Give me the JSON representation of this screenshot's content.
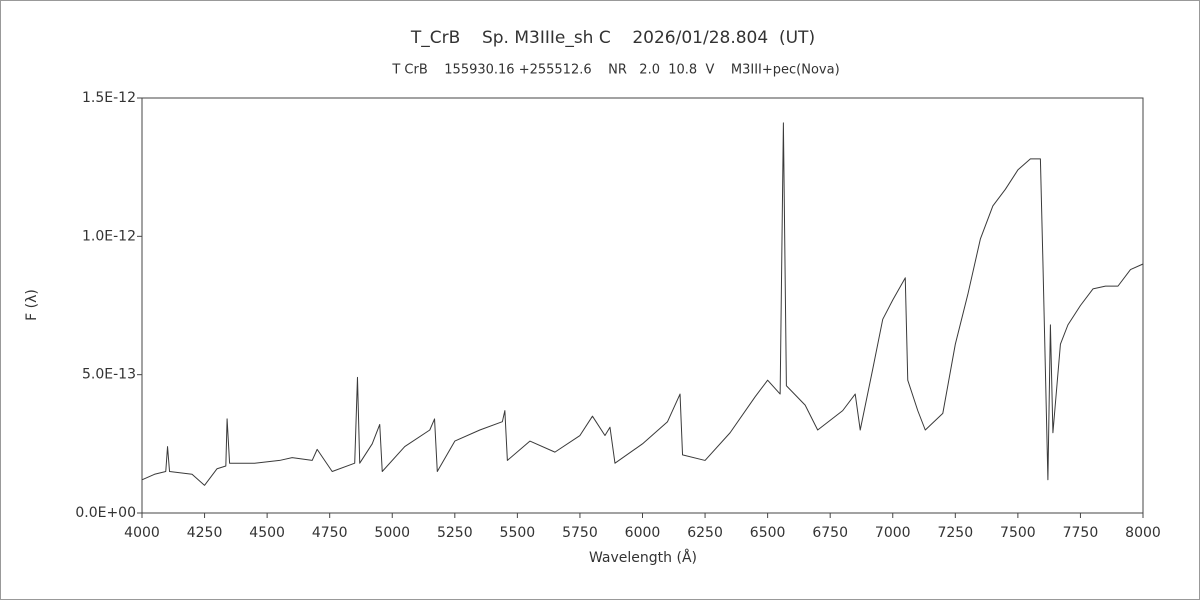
{
  "chart_data": {
    "type": "line",
    "title": "T_CrB    Sp. M3IIIe_sh C    2026/01/28.804  (UT)",
    "subtitle": "T CrB    155930.16 +255512.6    NR   2.0  10.8  V    M3III+pec(Nova)",
    "xlabel": "Wavelength (Å)",
    "ylabel": "F (λ)",
    "x": [
      4000,
      4050,
      4095,
      4102,
      4110,
      4200,
      4250,
      4300,
      4335,
      4340,
      4350,
      4450,
      4550,
      4600,
      4680,
      4700,
      4760,
      4850,
      4861,
      4870,
      4920,
      4950,
      4960,
      5050,
      5150,
      5169,
      5180,
      5250,
      5350,
      5440,
      5450,
      5460,
      5550,
      5650,
      5750,
      5800,
      5850,
      5870,
      5890,
      6000,
      6100,
      6150,
      6160,
      6250,
      6350,
      6450,
      6500,
      6550,
      6563,
      6575,
      6650,
      6700,
      6800,
      6850,
      6870,
      6920,
      6960,
      7000,
      7050,
      7060,
      7100,
      7130,
      7200,
      7250,
      7300,
      7350,
      7400,
      7450,
      7500,
      7550,
      7590,
      7600,
      7620,
      7630,
      7640,
      7670,
      7700,
      7750,
      7800,
      7850,
      7900,
      7950,
      8000
    ],
    "series": [
      {
        "color": "#3a3a3a",
        "values": [
          1.2e-13,
          1.4e-13,
          1.5e-13,
          2.4e-13,
          1.5e-13,
          1.4e-13,
          1e-13,
          1.6e-13,
          1.7e-13,
          3.4e-13,
          1.8e-13,
          1.8e-13,
          1.9e-13,
          2e-13,
          1.9e-13,
          2.3e-13,
          1.5e-13,
          1.8e-13,
          4.9e-13,
          1.8e-13,
          2.5e-13,
          3.2e-13,
          1.5e-13,
          2.4e-13,
          3e-13,
          3.4e-13,
          1.5e-13,
          2.6e-13,
          3e-13,
          3.3e-13,
          3.7e-13,
          1.9e-13,
          2.6e-13,
          2.2e-13,
          2.8e-13,
          3.5e-13,
          2.8e-13,
          3.1e-13,
          1.8e-13,
          2.5e-13,
          3.3e-13,
          4.3e-13,
          2.1e-13,
          1.9e-13,
          2.9e-13,
          4.2e-13,
          4.8e-13,
          4.3e-13,
          1.41e-12,
          4.6e-13,
          3.9e-13,
          3e-13,
          3.7e-13,
          4.3e-13,
          3e-13,
          5.2e-13,
          7e-13,
          7.7e-13,
          8.5e-13,
          4.8e-13,
          3.7e-13,
          3e-13,
          3.6e-13,
          6.1e-13,
          7.9e-13,
          9.9e-13,
          1.11e-12,
          1.17e-12,
          1.24e-12,
          1.28e-12,
          1.28e-12,
          9.1e-13,
          1.2e-13,
          6.8e-13,
          2.9e-13,
          6.1e-13,
          6.8e-13,
          7.5e-13,
          8.1e-13,
          8.2e-13,
          8.2e-13,
          8.8e-13,
          9e-13
        ]
      }
    ],
    "xlim": [
      4000,
      8000
    ],
    "xticks": [
      4000,
      4250,
      4500,
      4750,
      5000,
      5250,
      5500,
      5750,
      6000,
      6250,
      6500,
      6750,
      7000,
      7250,
      7500,
      7750,
      8000
    ],
    "ylim": [
      0,
      1.5e-12
    ],
    "yticks": [
      {
        "value": 0,
        "label": "0.0E+00"
      },
      {
        "value": 5e-13,
        "label": "5.0E-13"
      },
      {
        "value": 1e-12,
        "label": "1.0E-12"
      },
      {
        "value": 1.5e-12,
        "label": "1.5E-12"
      }
    ],
    "grid": false
  }
}
